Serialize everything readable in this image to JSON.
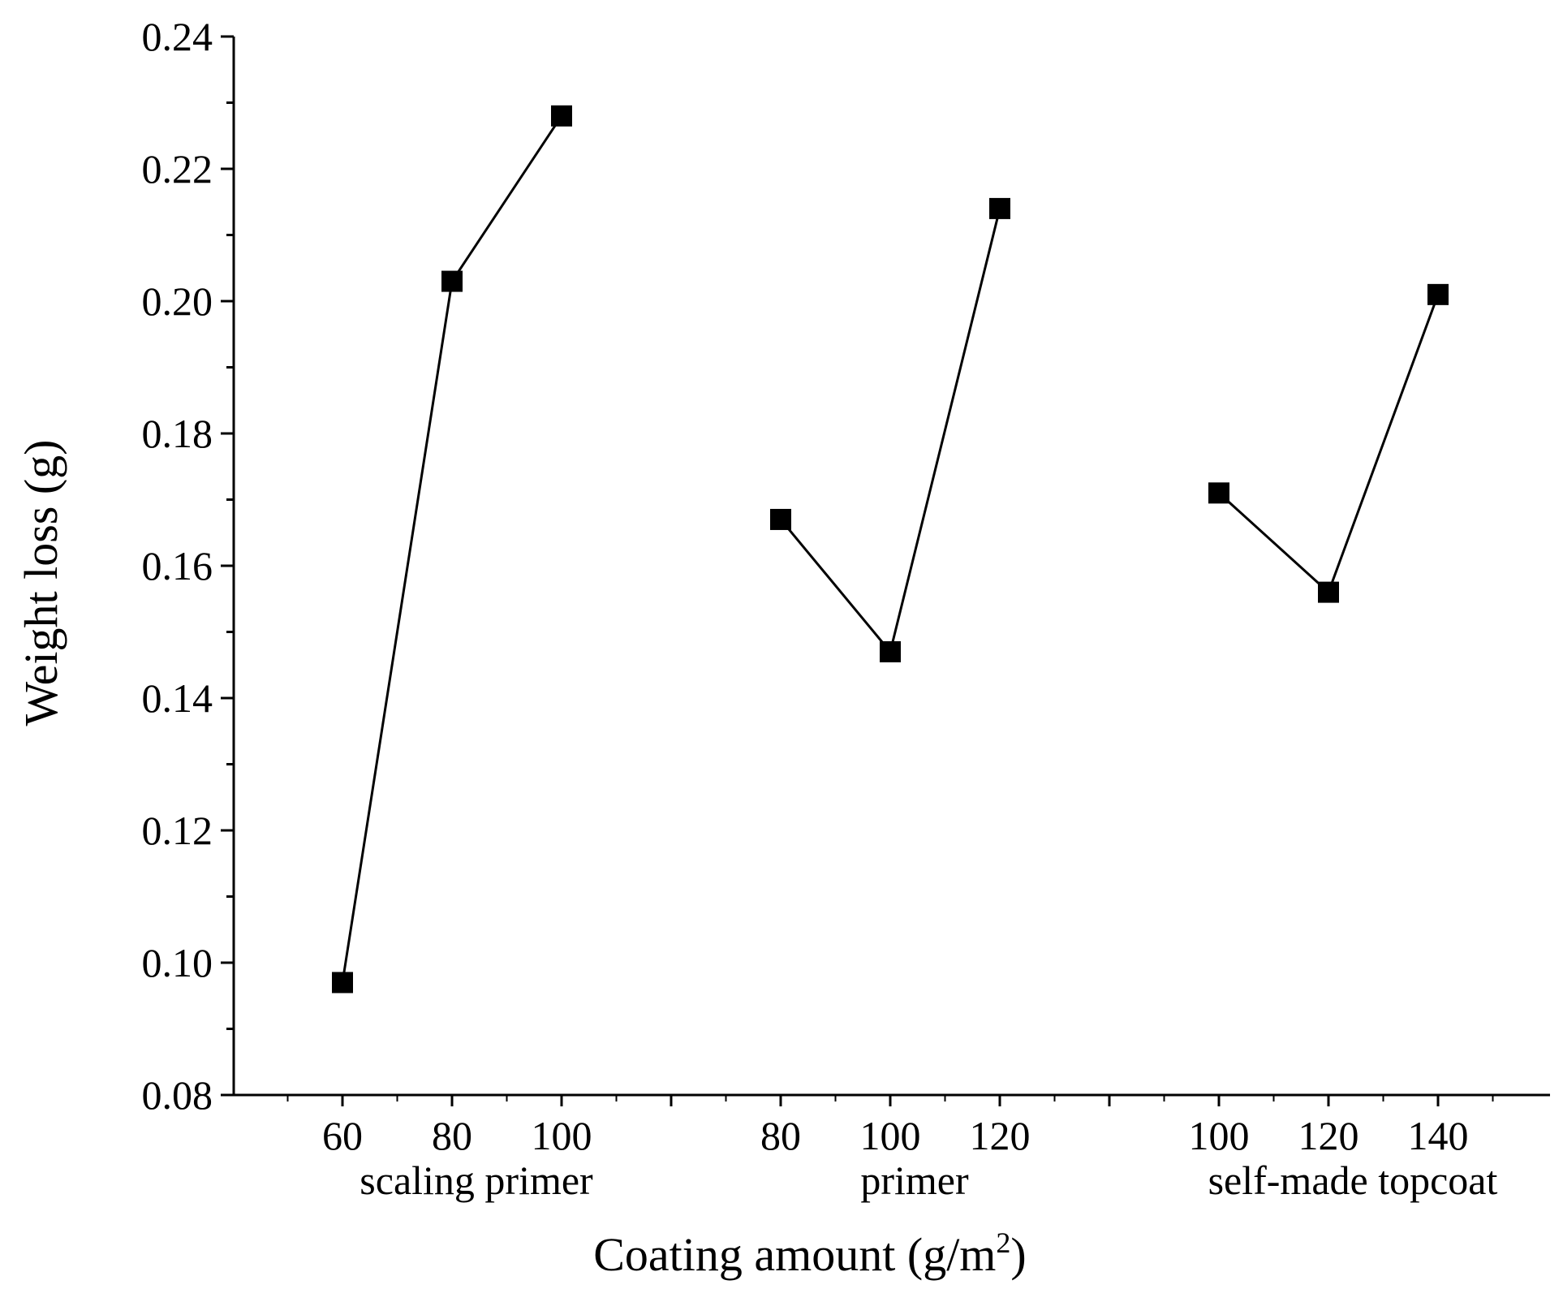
{
  "chart_data": {
    "type": "line",
    "title": "",
    "xlabel": "Coating amount (g/m",
    "xlabel_superscript": "2",
    "xlabel_close": ")",
    "ylabel": "Weight loss (g)",
    "ylim": [
      0.08,
      0.24
    ],
    "yticks": [
      "0.08",
      "0.10",
      "0.12",
      "0.14",
      "0.16",
      "0.18",
      "0.20",
      "0.22",
      "0.24"
    ],
    "yminor_step": 0.01,
    "marker": "square",
    "colors": {
      "line": "#000000",
      "marker": "#000000",
      "axis": "#000000"
    },
    "series": [
      {
        "name": "scaling primer",
        "x": [
          "60",
          "80",
          "100"
        ],
        "values": [
          0.097,
          0.203,
          0.228
        ]
      },
      {
        "name": "primer",
        "x": [
          "80",
          "100",
          "120"
        ],
        "values": [
          0.167,
          0.147,
          0.214
        ]
      },
      {
        "name": "self-made topcoat",
        "x": [
          "100",
          "120",
          "140"
        ],
        "values": [
          0.171,
          0.156,
          0.201
        ]
      }
    ]
  }
}
